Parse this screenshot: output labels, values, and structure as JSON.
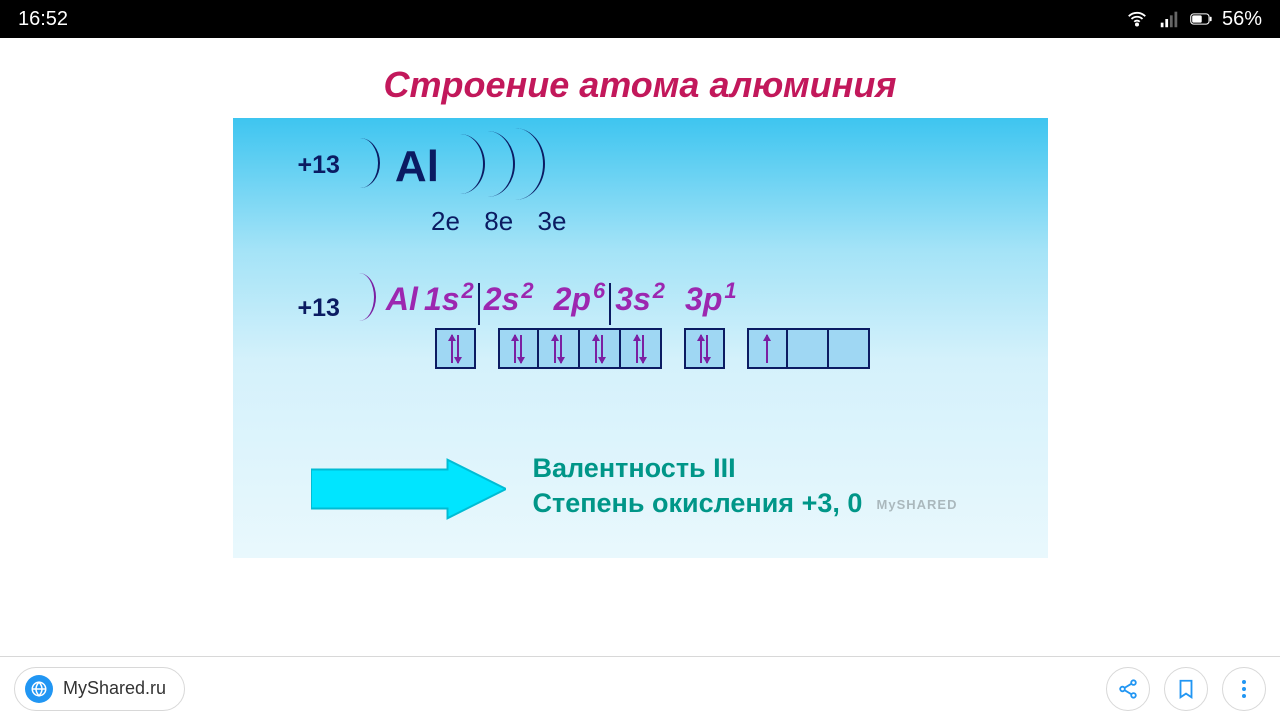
{
  "status": {
    "time": "16:52",
    "battery_pct": "56%"
  },
  "slide": {
    "title": "Строение атома алюминия",
    "nucleus_charge": "+13",
    "symbol": "Al",
    "shell_electrons": [
      "2e",
      "8e",
      "3e"
    ],
    "config_charge": "+13",
    "config_symbol": "Al",
    "orbitals": [
      {
        "label": "1s",
        "sup": "2"
      },
      {
        "label": "2s",
        "sup": "2"
      },
      {
        "label": "2p",
        "sup": "6"
      },
      {
        "label": "3s",
        "sup": "2"
      },
      {
        "label": "3p",
        "sup": "1"
      }
    ],
    "boxes": {
      "groups": [
        {
          "boxes": [
            {
              "arrows": [
                "up",
                "down"
              ]
            }
          ]
        },
        {
          "boxes": [
            {
              "arrows": [
                "up",
                "down"
              ]
            },
            {
              "arrows": [
                "up",
                "down"
              ]
            },
            {
              "arrows": [
                "up",
                "down"
              ]
            },
            {
              "arrows": [
                "up",
                "down"
              ]
            }
          ]
        },
        {
          "boxes": [
            {
              "arrows": [
                "up",
                "down"
              ]
            }
          ]
        },
        {
          "boxes": [
            {
              "arrows": [
                "up"
              ]
            },
            {
              "arrows": []
            },
            {
              "arrows": []
            }
          ]
        }
      ],
      "border_color": "#0b1b62",
      "fill_color": "#9fd7f3",
      "arrow_color": "#7b1fa2"
    },
    "valence_line1": "Валентность    III",
    "valence_line2": "Степень окисления +3, 0",
    "watermark": "MySHARED",
    "colors": {
      "title": "#c2185b",
      "navy": "#0b1b62",
      "magenta": "#9c27b0",
      "teal": "#009688",
      "cyan_arrow": "#00bcd4",
      "bg_gradient_top": "#3ec5f0",
      "bg_gradient_bottom": "#e9f8fd"
    },
    "fontsize": {
      "title": 36,
      "body": 26,
      "config": 32,
      "valence": 27
    }
  },
  "bottom": {
    "site": "MyShared.ru"
  }
}
